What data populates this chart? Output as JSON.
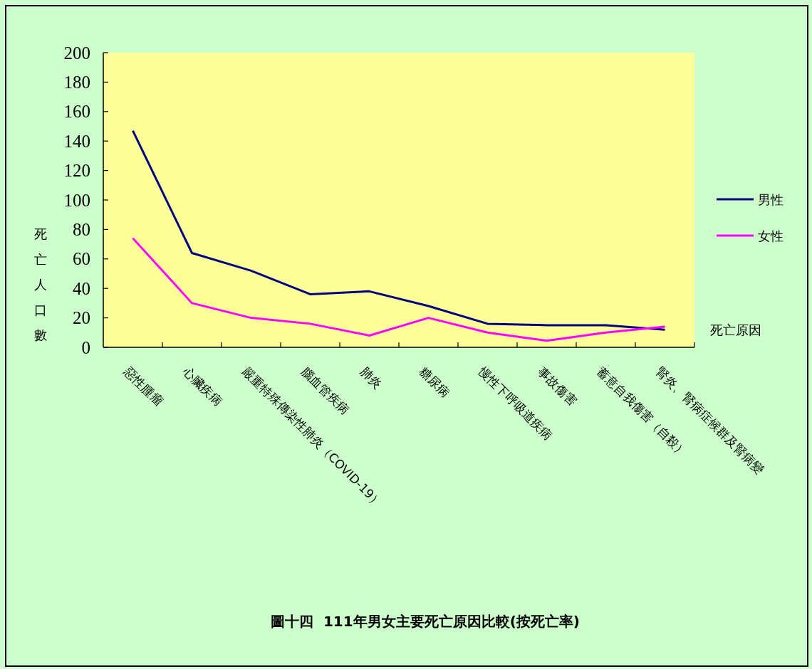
{
  "chart_data": {
    "type": "line",
    "title": "圖十四  111年男女主要死亡原因比較(按死亡率)",
    "xlabel": "死亡原因",
    "ylabel": "死亡人口數",
    "categories": [
      "惡性腫瘤",
      "心臟疾病",
      "嚴重特殊傳染性肺炎（COVID-19）",
      "腦血管疾病",
      "肺炎",
      "糖尿病",
      "慢性下呼吸道疾病",
      "事故傷害",
      "蓄意自我傷害（自殺）",
      "腎炎、腎病症候群及腎病變"
    ],
    "series": [
      {
        "name": "男性",
        "color": "#000080",
        "values": [
          147,
          64,
          52,
          36,
          38,
          28,
          16,
          15,
          15,
          12
        ]
      },
      {
        "name": "女性",
        "color": "#ff00ff",
        "values": [
          74,
          30,
          20,
          16,
          8,
          20,
          10,
          4.5,
          10,
          14
        ]
      }
    ],
    "ylim": [
      0,
      200
    ],
    "yticks": [
      0,
      20,
      40,
      60,
      80,
      100,
      120,
      140,
      160,
      180,
      200
    ],
    "grid": false,
    "legend": "right"
  }
}
